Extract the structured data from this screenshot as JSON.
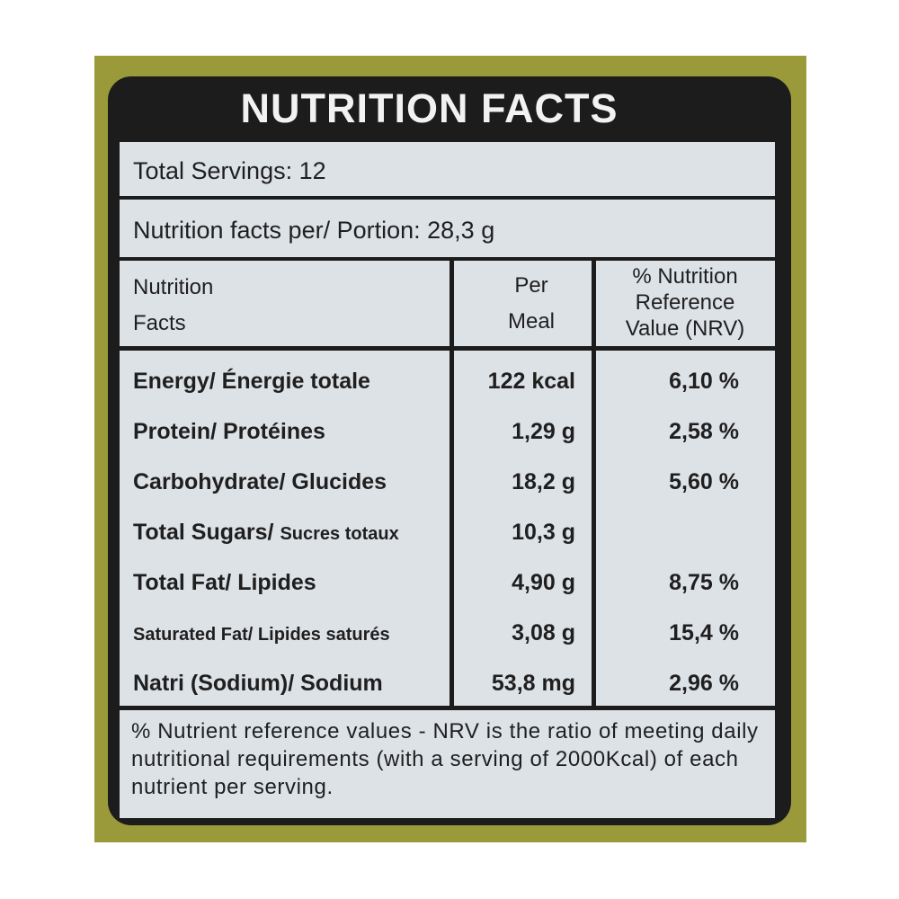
{
  "header": {
    "title": "NUTRITION FACTS"
  },
  "servings": "Total Servings: 12",
  "portion": "Nutrition facts per/ Portion: 28,3 g",
  "table": {
    "headers": [
      [
        "Nutrition",
        "Facts"
      ],
      [
        "Per",
        "Meal"
      ],
      [
        "% Nutrition",
        "Reference",
        "Value (NRV)"
      ]
    ],
    "rows": [
      {
        "name": "Energy/ Énergie totale",
        "per_meal": "122 kcal",
        "nrv": "6,10 %"
      },
      {
        "name": "Protein/ Protéines",
        "per_meal": "1,29 g",
        "nrv": "2,58 %"
      },
      {
        "name": "Carbohydrate/ Glucides",
        "per_meal": "18,2 g",
        "nrv": "5,60 %"
      },
      {
        "name": "Total Sugars/",
        "name_fr": "Sucres totaux",
        "per_meal": "10,3 g"
      },
      {
        "name": "Total Fat/ Lipides",
        "per_meal": "4,90 g",
        "nrv": "8,75 %"
      },
      {
        "name": "Saturated Fat/ Lipides saturés",
        "per_meal": "3,08 g",
        "nrv": "15,4 %"
      },
      {
        "name": "Natri (Sodium)/ Sodium",
        "per_meal": "53,8 mg",
        "nrv": "2,96 %"
      }
    ]
  },
  "footnote": "% Nutrient reference values - NRV is the ratio of meeting daily nutritional requirements (with a serving of 2000Kcal) of each nutrient per serving."
}
